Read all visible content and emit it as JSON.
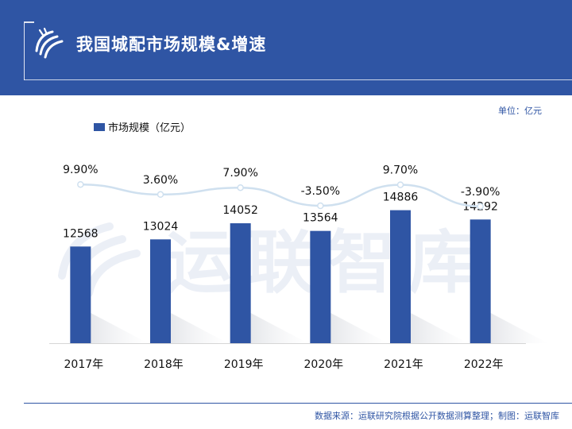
{
  "header": {
    "title": "我国城配市场规模&增速"
  },
  "unit_label": "单位：亿元",
  "watermark_text": "运联智库",
  "source_text": "数据来源：运联研究院根据公开数据测算整理；制图：运联智库",
  "colors": {
    "header_bg": "#2f55a4",
    "bar": "#2f55a4",
    "growth_line": "#cfe0ef"
  },
  "chart_data": {
    "type": "bar",
    "title": "我国城配市场规模&增速",
    "categories": [
      "2017年",
      "2018年",
      "2019年",
      "2020年",
      "2021年",
      "2022年"
    ],
    "series": [
      {
        "name": "市场规模（亿元）",
        "type": "bar",
        "values": [
          12568,
          13024,
          14052,
          13564,
          14886,
          14292
        ]
      },
      {
        "type": "line",
        "values": [
          9.9,
          3.6,
          7.9,
          -3.5,
          9.7,
          -3.9
        ],
        "labels": [
          "9.90%",
          "3.60%",
          "7.90%",
          "-3.50%",
          "9.70%",
          "-3.90%"
        ]
      }
    ],
    "legend": "top-left",
    "grid": false,
    "ylim": [
      0,
      16000
    ]
  }
}
